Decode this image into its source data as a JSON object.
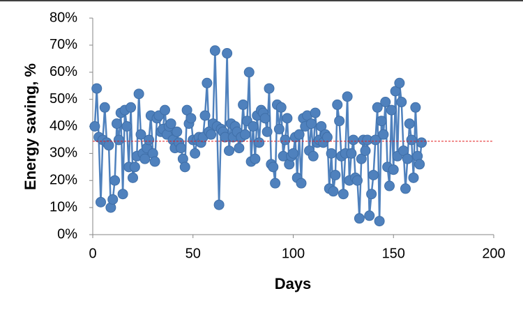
{
  "chart_data": {
    "type": "line-scatter",
    "xlabel": "Days",
    "ylabel": "Energy saving, %",
    "x": [
      1,
      2,
      3,
      4,
      5,
      6,
      7,
      8,
      9,
      10,
      11,
      12,
      13,
      14,
      15,
      16,
      17,
      18,
      19,
      20,
      21,
      22,
      23,
      24,
      25,
      26,
      27,
      28,
      29,
      30,
      31,
      32,
      33,
      34,
      35,
      36,
      37,
      38,
      39,
      40,
      41,
      42,
      43,
      44,
      45,
      46,
      47,
      48,
      49,
      50,
      51,
      52,
      53,
      54,
      55,
      56,
      57,
      58,
      59,
      60,
      61,
      62,
      63,
      64,
      65,
      66,
      67,
      68,
      69,
      70,
      71,
      72,
      73,
      74,
      75,
      76,
      77,
      78,
      79,
      80,
      81,
      82,
      83,
      84,
      85,
      86,
      87,
      88,
      89,
      90,
      91,
      92,
      93,
      94,
      95,
      96,
      97,
      98,
      99,
      100,
      101,
      102,
      103,
      104,
      105,
      106,
      107,
      108,
      109,
      110,
      111,
      112,
      113,
      114,
      115,
      116,
      117,
      118,
      119,
      120,
      121,
      122,
      123,
      124,
      125,
      126,
      127,
      128,
      129,
      130,
      131,
      132,
      133,
      134,
      135,
      136,
      137,
      138,
      139,
      140,
      141,
      142,
      143,
      144,
      145,
      146,
      147,
      148,
      149,
      150,
      151,
      152,
      153,
      154,
      155,
      156,
      157,
      158,
      159,
      160,
      161,
      162,
      163,
      164
    ],
    "series": [
      {
        "color": "#4f81bd",
        "values": [
          40,
          54,
          36,
          12,
          35,
          47,
          34,
          33,
          10,
          13,
          20,
          41,
          35,
          45,
          15,
          46,
          40,
          25,
          47,
          21,
          25,
          29,
          52,
          37,
          30,
          28,
          32,
          35,
          44,
          30,
          27,
          43,
          44,
          38,
          39,
          46,
          37,
          40,
          41,
          35,
          32,
          38,
          34,
          32,
          28,
          25,
          46,
          41,
          43,
          35,
          30,
          35,
          36,
          34,
          36,
          44,
          56,
          38,
          37,
          41,
          68,
          40,
          11,
          39,
          38,
          36,
          67,
          31,
          41,
          36,
          40,
          38,
          32,
          36,
          48,
          37,
          42,
          60,
          27,
          40,
          28,
          44,
          34,
          46,
          45,
          43,
          38,
          54,
          26,
          25,
          19,
          48,
          39,
          47,
          29,
          35,
          43,
          26,
          29,
          30,
          36,
          21,
          37,
          19,
          43,
          40,
          44,
          31,
          41,
          29,
          45,
          34,
          35,
          40,
          34,
          37,
          36,
          17,
          30,
          16,
          22,
          48,
          42,
          29,
          15,
          30,
          51,
          20,
          30,
          35,
          21,
          20,
          6,
          28,
          35,
          31,
          35,
          7,
          15,
          22,
          35,
          47,
          5,
          42,
          37,
          49,
          25,
          18,
          46,
          24,
          53,
          29,
          56,
          49,
          31,
          17,
          28,
          41,
          35,
          21,
          47,
          29,
          26,
          34
        ]
      }
    ],
    "reference_line": {
      "value": 34.5,
      "color": "#e41a1c",
      "dashed": true
    },
    "xlim": [
      0,
      200
    ],
    "xticks": [
      0,
      50,
      100,
      150,
      200
    ],
    "ylim": [
      0,
      80
    ],
    "yticks": [
      {
        "value": 0,
        "label": "0%"
      },
      {
        "value": 10,
        "label": "10%"
      },
      {
        "value": 20,
        "label": "20%"
      },
      {
        "value": 30,
        "label": "30%"
      },
      {
        "value": 40,
        "label": "40%"
      },
      {
        "value": 50,
        "label": "50%"
      },
      {
        "value": 60,
        "label": "60%"
      },
      {
        "value": 70,
        "label": "70%"
      },
      {
        "value": 80,
        "label": "80%"
      }
    ],
    "grid": false
  }
}
